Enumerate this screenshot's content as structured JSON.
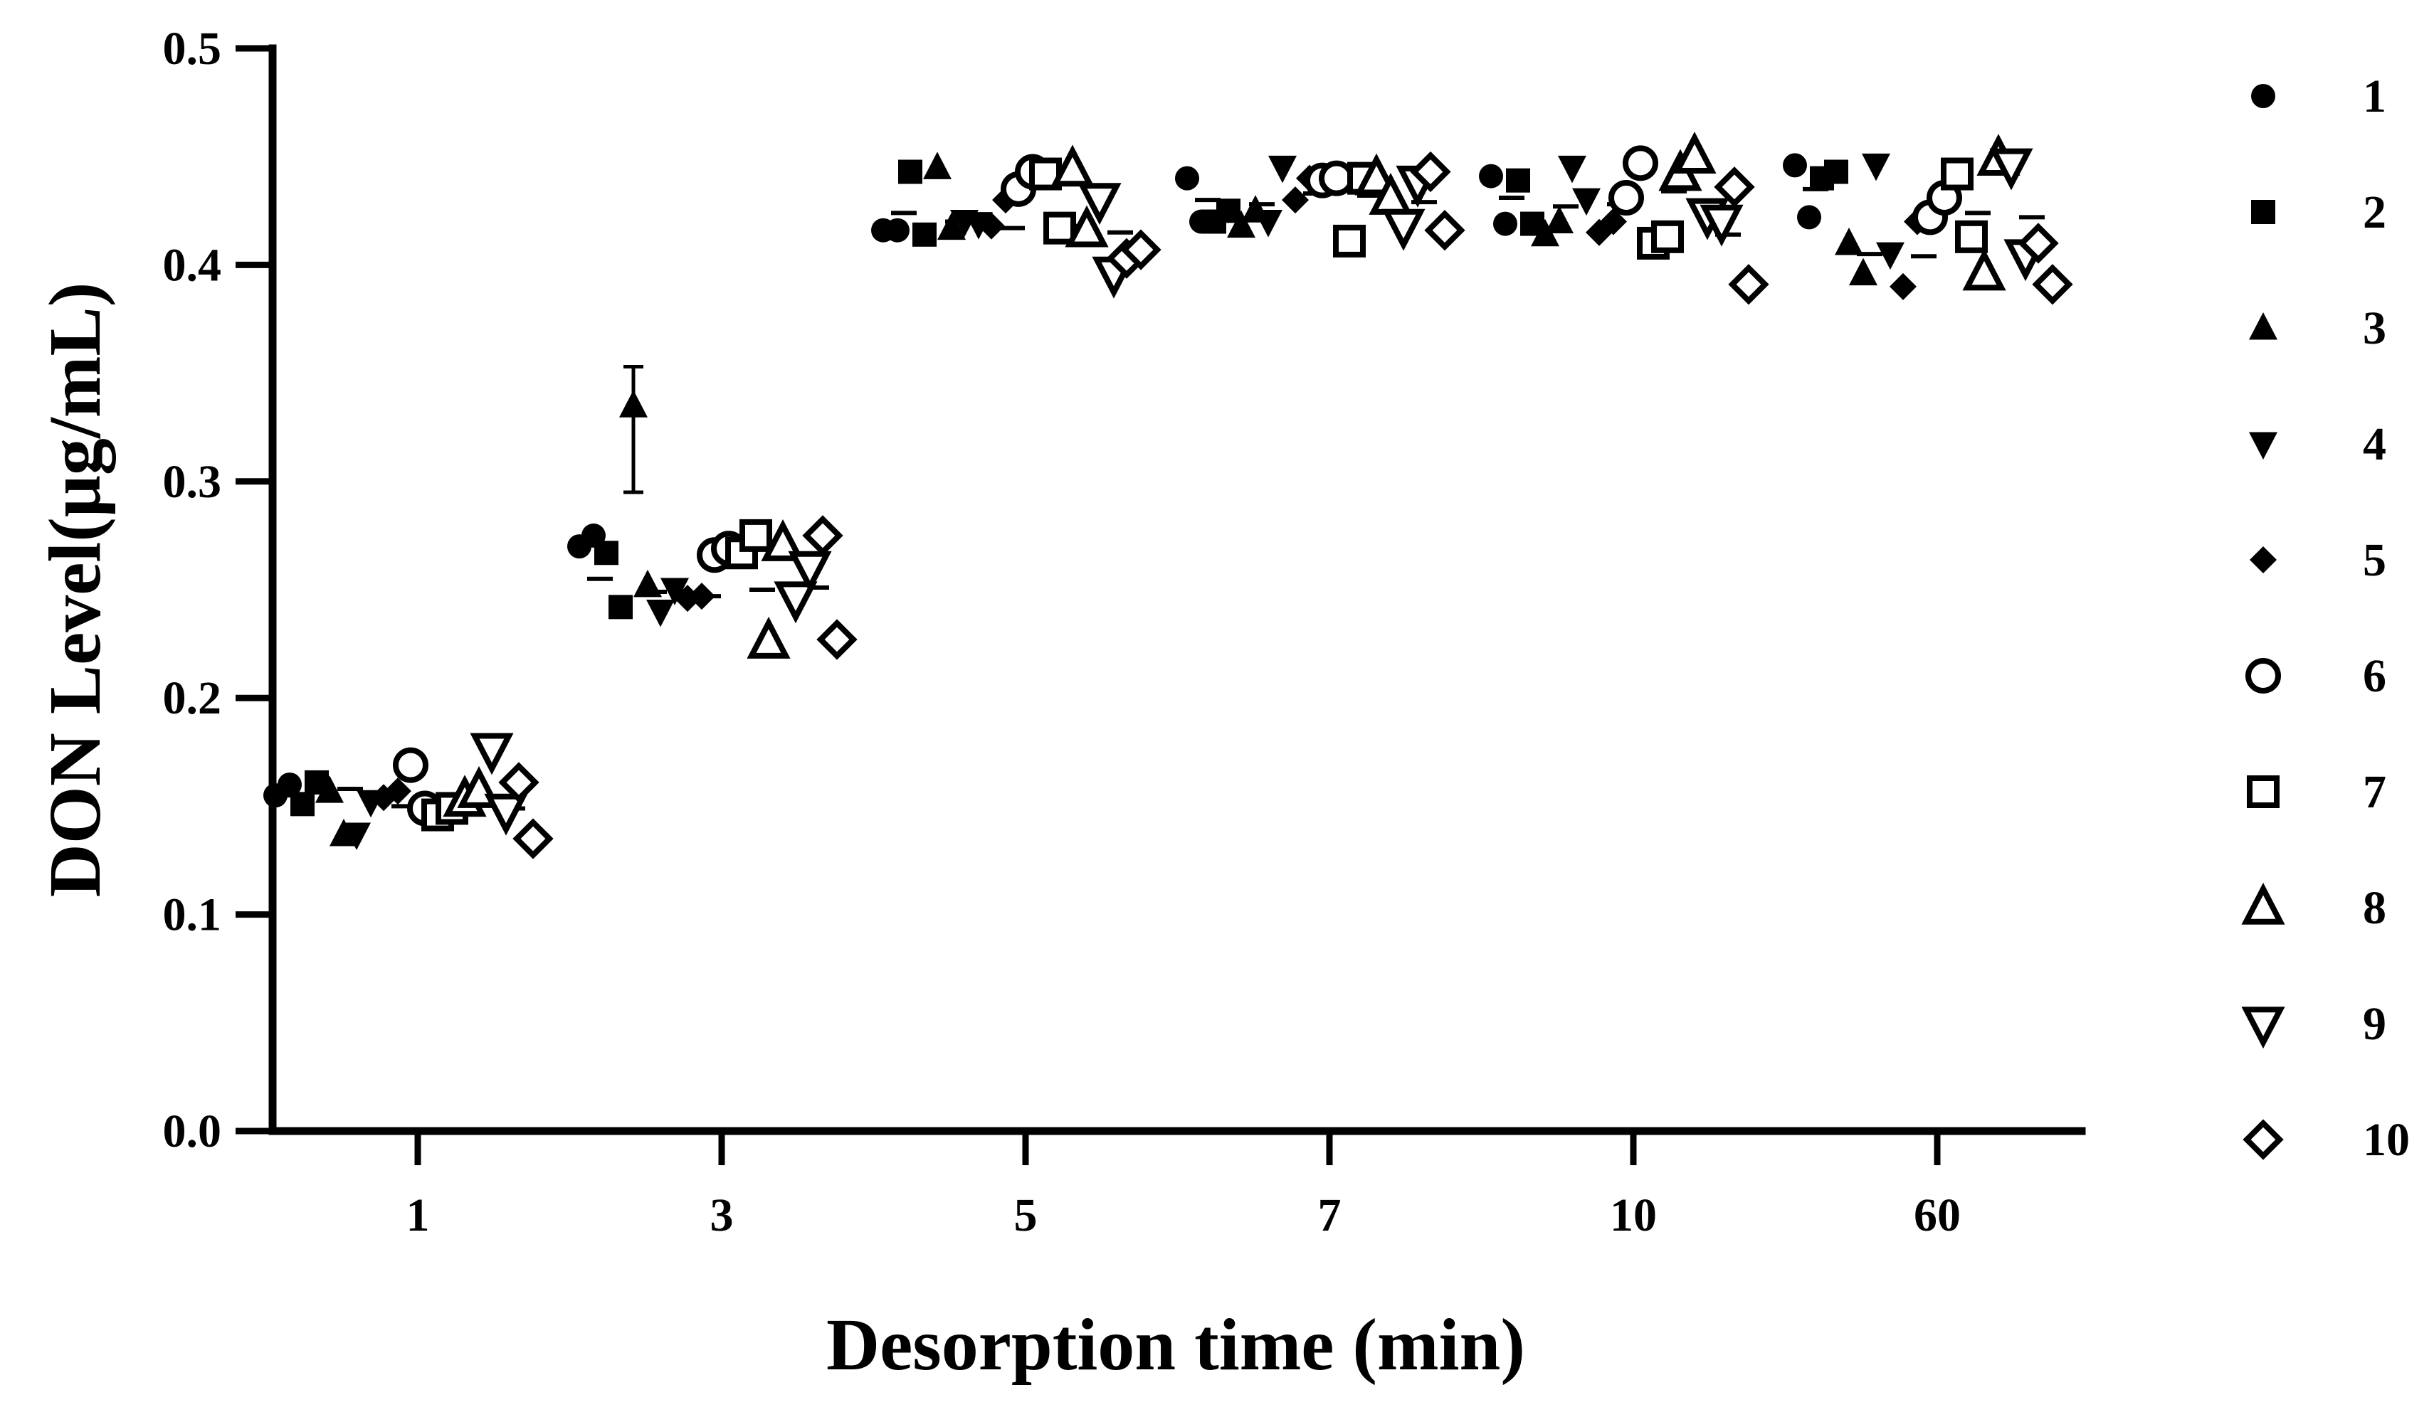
{
  "chart_data": {
    "type": "scatter",
    "title": "",
    "xlabel": "Desorption time (min)",
    "ylabel": "DON Level(μg/mL)",
    "categories": [
      "1",
      "3",
      "5",
      "7",
      "10",
      "60"
    ],
    "ylim": [
      0.0,
      0.5
    ],
    "yticks": [
      "0.0",
      "0.1",
      "0.2",
      "0.3",
      "0.4",
      "0.5"
    ],
    "grid": false,
    "legend_position": "right",
    "series": [
      {
        "name": "1",
        "marker": "circle",
        "filled": true,
        "values": [
          [
            0.155,
            0.16
          ],
          [
            0.27,
            0.275
          ],
          [
            0.416,
            0.416
          ],
          [
            0.44,
            0.42
          ],
          [
            0.441,
            0.419
          ],
          [
            0.446,
            0.422
          ]
        ]
      },
      {
        "name": "2",
        "marker": "square",
        "filled": true,
        "values": [
          [
            0.151,
            0.161
          ],
          [
            0.267,
            0.242
          ],
          [
            0.443,
            0.414
          ],
          [
            0.42,
            0.425
          ],
          [
            0.439,
            0.419
          ],
          [
            0.44,
            0.443
          ]
        ]
      },
      {
        "name": "3",
        "marker": "triangle-up",
        "filled": true,
        "values": [
          [
            0.157,
            0.137
          ],
          [
            0.335,
            0.252
          ],
          [
            0.445,
            0.417
          ],
          [
            0.418,
            0.425
          ],
          [
            0.414,
            0.42
          ],
          [
            0.41,
            0.396
          ]
        ]
      },
      {
        "name": "4",
        "marker": "triangle-down",
        "filled": true,
        "values": [
          [
            0.137,
            0.152
          ],
          [
            0.24,
            0.25
          ],
          [
            0.42,
            0.419
          ],
          [
            0.42,
            0.445
          ],
          [
            0.445,
            0.43
          ],
          [
            0.446,
            0.405
          ]
        ]
      },
      {
        "name": "5",
        "marker": "diamond",
        "filled": true,
        "values": [
          [
            0.154,
            0.157
          ],
          [
            0.246,
            0.247
          ],
          [
            0.418,
            0.43
          ],
          [
            0.43,
            0.44
          ],
          [
            0.415,
            0.42
          ],
          [
            0.39,
            0.42
          ]
        ]
      },
      {
        "name": "6",
        "marker": "circle",
        "filled": false,
        "values": [
          [
            0.169,
            0.149
          ],
          [
            0.266,
            0.269
          ],
          [
            0.435,
            0.443
          ],
          [
            0.439,
            0.44
          ],
          [
            0.431,
            0.447
          ],
          [
            0.422,
            0.431
          ]
        ]
      },
      {
        "name": "7",
        "marker": "square",
        "filled": false,
        "values": [
          [
            0.146,
            0.149
          ],
          [
            0.267,
            0.275
          ],
          [
            0.442,
            0.417
          ],
          [
            0.411,
            0.44
          ],
          [
            0.41,
            0.413
          ],
          [
            0.442,
            0.413
          ]
        ]
      },
      {
        "name": "8",
        "marker": "triangle-up",
        "filled": false,
        "values": [
          [
            0.153,
            0.157
          ],
          [
            0.226,
            0.271
          ],
          [
            0.444,
            0.416
          ],
          [
            0.44,
            0.431
          ],
          [
            0.442,
            0.45
          ],
          [
            0.396,
            0.449
          ]
        ]
      },
      {
        "name": "9",
        "marker": "triangle-down",
        "filled": false,
        "values": [
          [
            0.176,
            0.148
          ],
          [
            0.246,
            0.26
          ],
          [
            0.43,
            0.396
          ],
          [
            0.418,
            0.438
          ],
          [
            0.423,
            0.42
          ],
          [
            0.446,
            0.404
          ]
        ]
      },
      {
        "name": "10",
        "marker": "diamond",
        "filled": false,
        "values": [
          [
            0.161,
            0.135
          ],
          [
            0.275,
            0.227
          ],
          [
            0.403,
            0.407
          ],
          [
            0.443,
            0.416
          ],
          [
            0.436,
            0.391
          ],
          [
            0.41,
            0.391
          ]
        ]
      }
    ],
    "group_means": [
      [
        0.155,
        0.158,
        0.15,
        0.148,
        0.149
      ],
      [
        0.255,
        0.249,
        0.247,
        0.25,
        0.251
      ],
      [
        0.424,
        0.42,
        0.417,
        0.418,
        0.415
      ],
      [
        0.43,
        0.428,
        0.433,
        0.432,
        0.429
      ],
      [
        0.431,
        0.427,
        0.428,
        0.434,
        0.414
      ],
      [
        0.435,
        0.405,
        0.404,
        0.424,
        0.422
      ]
    ],
    "error_bars": [
      {
        "category": "3",
        "series": "3",
        "low": 0.295,
        "high": 0.353
      }
    ]
  }
}
